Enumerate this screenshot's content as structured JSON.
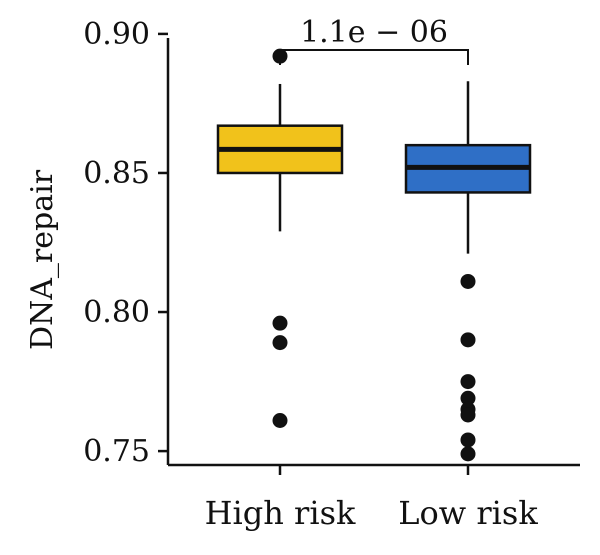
{
  "chart_data": {
    "type": "box",
    "ylabel": "DNA_repair",
    "xlabel": "",
    "ylim": [
      0.745,
      0.905
    ],
    "yticks": [
      0.75,
      0.8,
      0.85,
      0.9
    ],
    "ytick_labels": [
      "0.75",
      "0.80",
      "0.85",
      "0.90"
    ],
    "categories": [
      "High risk",
      "Low risk"
    ],
    "boxes": [
      {
        "name": "High risk",
        "color": "#F1C21B",
        "q1": 0.85,
        "median": 0.8585,
        "q3": 0.867,
        "whisker_low": 0.829,
        "whisker_high": 0.882,
        "outliers": [
          0.892,
          0.796,
          0.789,
          0.761
        ]
      },
      {
        "name": "Low risk",
        "color": "#2F6FC6",
        "q1": 0.843,
        "median": 0.852,
        "q3": 0.86,
        "whisker_low": 0.821,
        "whisker_high": 0.883,
        "outliers": [
          0.811,
          0.79,
          0.775,
          0.769,
          0.765,
          0.763,
          0.754,
          0.749
        ]
      }
    ],
    "comparison": {
      "groups": [
        "High risk",
        "Low risk"
      ],
      "label": "1.1e − 06"
    },
    "grid": false,
    "legend": "none"
  }
}
